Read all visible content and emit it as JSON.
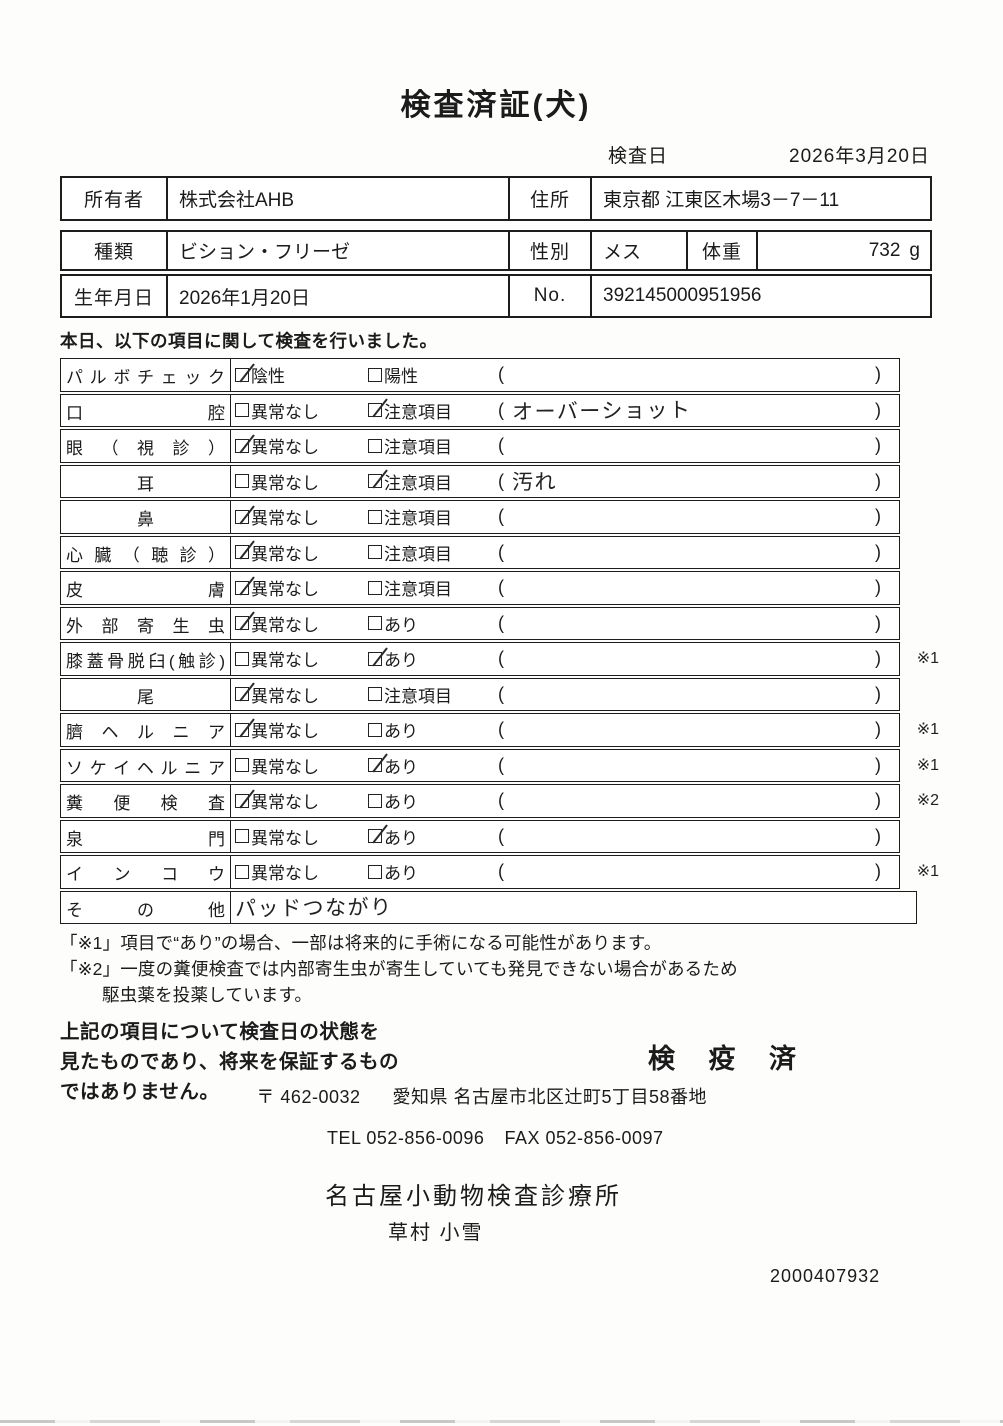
{
  "title": "検査済証(犬)",
  "header": {
    "date_label": "検査日",
    "date_value": "2026年3月20日"
  },
  "owner": {
    "label": "所有者",
    "value": "株式会社AHB",
    "address_label": "住所",
    "address_value": "東京都 江東区木場3－7－11"
  },
  "pet": {
    "breed_label": "種類",
    "breed_value": "ビション・フリーゼ",
    "sex_label": "性別",
    "sex_value": "メス",
    "weight_label": "体重",
    "weight_value": "732",
    "weight_unit": "g",
    "birth_label": "生年月日",
    "birth_value": "2026年1月20日",
    "no_label": "No.",
    "no_value": "392145000951956"
  },
  "intro": "本日、以下の項目に関して検査を行いました。",
  "exam_table": {
    "rows": [
      {
        "label": "パルボチェック",
        "opt1": "陰性",
        "opt1_checked": true,
        "opt2": "陽性",
        "opt2_checked": false,
        "paren_content": "",
        "note": ""
      },
      {
        "label": "口腔",
        "opt1": "異常なし",
        "opt1_checked": false,
        "opt2": "注意項目",
        "opt2_checked": true,
        "paren_content": "オーバーショット",
        "note": ""
      },
      {
        "label": "眼（視診）",
        "opt1": "異常なし",
        "opt1_checked": true,
        "opt2": "注意項目",
        "opt2_checked": false,
        "paren_content": "",
        "note": ""
      },
      {
        "label": "耳",
        "opt1": "異常なし",
        "opt1_checked": false,
        "opt2": "注意項目",
        "opt2_checked": true,
        "paren_content": "汚れ",
        "note": ""
      },
      {
        "label": "鼻",
        "opt1": "異常なし",
        "opt1_checked": true,
        "opt2": "注意項目",
        "opt2_checked": false,
        "paren_content": "",
        "note": ""
      },
      {
        "label": "心臓（聴診）",
        "opt1": "異常なし",
        "opt1_checked": true,
        "opt2": "注意項目",
        "opt2_checked": false,
        "paren_content": "",
        "note": ""
      },
      {
        "label": "皮膚",
        "opt1": "異常なし",
        "opt1_checked": true,
        "opt2": "注意項目",
        "opt2_checked": false,
        "paren_content": "",
        "note": ""
      },
      {
        "label": "外部寄生虫",
        "opt1": "異常なし",
        "opt1_checked": true,
        "opt2": "あり",
        "opt2_checked": false,
        "paren_content": "",
        "note": ""
      },
      {
        "label": "膝蓋骨脱臼(触診)",
        "opt1": "異常なし",
        "opt1_checked": false,
        "opt2": "あり",
        "opt2_checked": true,
        "paren_content": "",
        "note": "※1"
      },
      {
        "label": "尾",
        "opt1": "異常なし",
        "opt1_checked": true,
        "opt2": "注意項目",
        "opt2_checked": false,
        "paren_content": "",
        "note": ""
      },
      {
        "label": "臍ヘルニア",
        "opt1": "異常なし",
        "opt1_checked": true,
        "opt2": "あり",
        "opt2_checked": false,
        "paren_content": "",
        "note": "※1"
      },
      {
        "label": "ソケイヘルニア",
        "opt1": "異常なし",
        "opt1_checked": false,
        "opt2": "あり",
        "opt2_checked": true,
        "paren_content": "",
        "note": "※1"
      },
      {
        "label": "糞便検査",
        "opt1": "異常なし",
        "opt1_checked": true,
        "opt2": "あり",
        "opt2_checked": false,
        "paren_content": "",
        "note": "※2"
      },
      {
        "label": "泉門",
        "opt1": "異常なし",
        "opt1_checked": false,
        "opt2": "あり",
        "opt2_checked": true,
        "paren_content": "",
        "note": ""
      },
      {
        "label": "インコウ",
        "opt1": "異常なし",
        "opt1_checked": false,
        "opt2": "あり",
        "opt2_checked": false,
        "paren_content": "",
        "note": "※1"
      },
      {
        "label": "その他",
        "free_text": "パッドつながり",
        "note": ""
      }
    ]
  },
  "footnotes": {
    "line1": "「※1」項目で“あり”の場合、一部は将来的に手術になる可能性があります。",
    "line2": "「※2」一度の糞便検査では内部寄生虫が寄生していても発見できない場合があるため",
    "line3": "駆虫薬を投薬しています。"
  },
  "disclaimer": {
    "line1": "上記の項目について検査日の状態を",
    "line2": "見たものであり、将来を保証するもの",
    "line3": "ではありません。"
  },
  "stamp": "検 疫 済",
  "footer": {
    "postal": "〒 462-0032",
    "address": "愛知県 名古屋市北区辻町5丁目58番地",
    "tel": "TEL 052-856-0096",
    "fax": "FAX 052-856-0097",
    "clinic_name": "名古屋小動物検査診療所",
    "vet_name": "草村  小雪",
    "serial": "2000407932"
  }
}
